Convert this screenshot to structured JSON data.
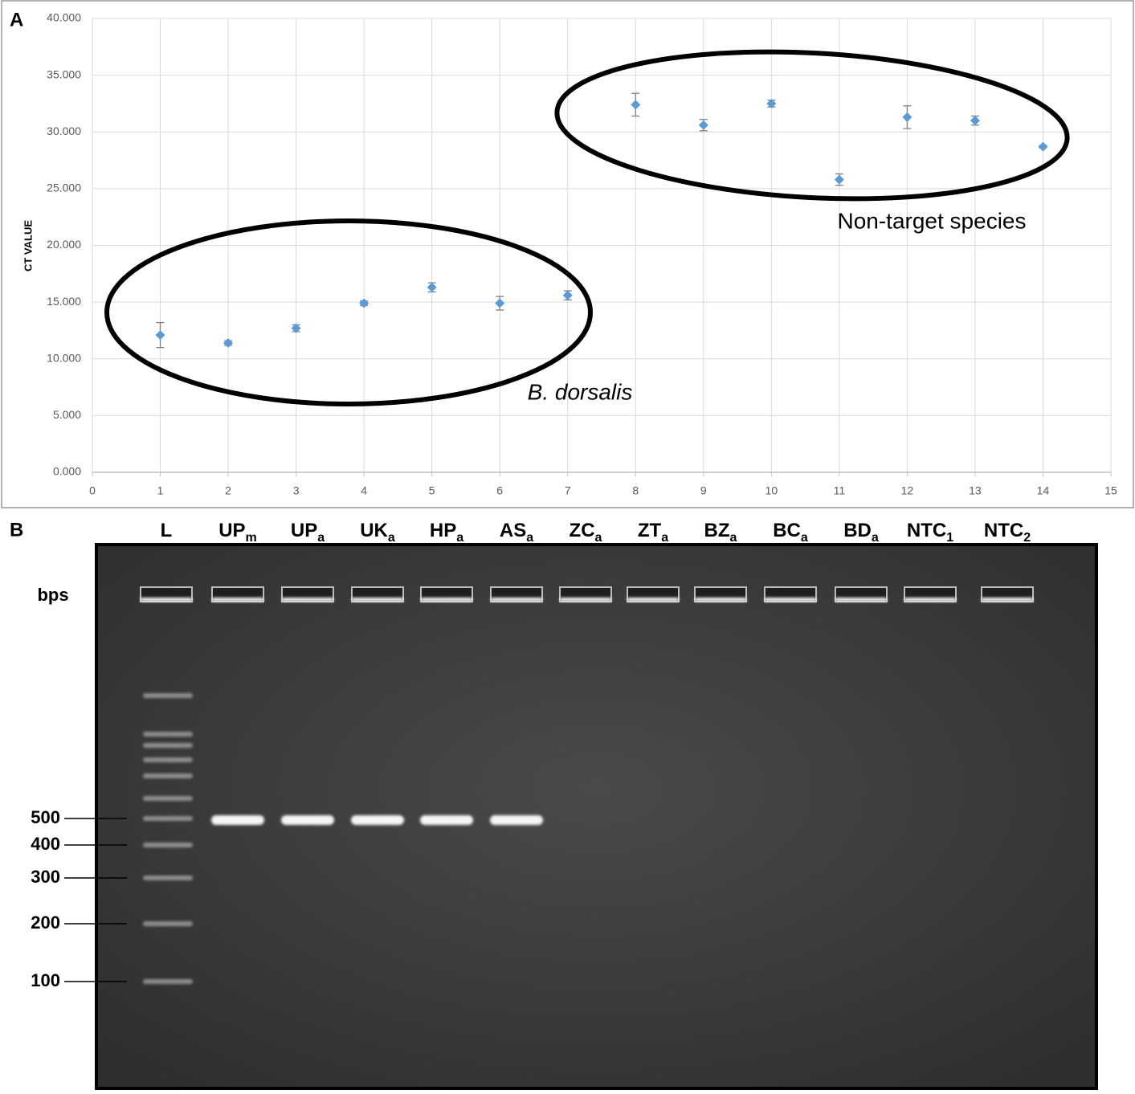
{
  "chart_data": {
    "type": "scatter",
    "panel_label": "A",
    "ylabel": "CT VALUE",
    "x": [
      1,
      2,
      3,
      4,
      5,
      6,
      7,
      8,
      9,
      10,
      11,
      12,
      13,
      14
    ],
    "values": [
      12.1,
      11.4,
      12.7,
      14.9,
      16.3,
      14.9,
      15.6,
      32.4,
      30.6,
      32.5,
      25.8,
      31.3,
      31.0,
      28.7
    ],
    "errors": [
      1.1,
      0.2,
      0.3,
      0.2,
      0.4,
      0.6,
      0.4,
      1.0,
      0.5,
      0.3,
      0.5,
      1.0,
      0.4,
      0.1
    ],
    "color": "#5b9bd5",
    "xlim": [
      0,
      15
    ],
    "xticks": [
      0,
      1,
      2,
      3,
      4,
      5,
      6,
      7,
      8,
      9,
      10,
      11,
      12,
      13,
      14,
      15
    ],
    "ylim": [
      0,
      40
    ],
    "yticks": [
      {
        "value": 0,
        "label": "0.000"
      },
      {
        "value": 5,
        "label": "5.000"
      },
      {
        "value": 10,
        "label": "10.000"
      },
      {
        "value": 15,
        "label": "15.000"
      },
      {
        "value": 20,
        "label": "20.000"
      },
      {
        "value": 25,
        "label": "25.000"
      },
      {
        "value": 30,
        "label": "30.000"
      },
      {
        "value": 35,
        "label": "35.000"
      },
      {
        "value": 40,
        "label": "40.000"
      }
    ],
    "grid": true,
    "annotations": [
      "Non-target species",
      "B. dorsalis"
    ]
  },
  "panel_b": {
    "panel_label": "B",
    "unit": "bps",
    "lanes": [
      {
        "text": "L"
      },
      {
        "text": "UP",
        "sub": "m"
      },
      {
        "text": "UP",
        "sub": "a"
      },
      {
        "text": "UK",
        "sub": "a"
      },
      {
        "text": "HP",
        "sub": "a"
      },
      {
        "text": "AS",
        "sub": "a"
      },
      {
        "text": "ZC",
        "sub": "a"
      },
      {
        "text": "ZT",
        "sub": "a"
      },
      {
        "text": "BZ",
        "sub": "a"
      },
      {
        "text": "BC",
        "sub": "a"
      },
      {
        "text": "BD",
        "sub": "a"
      },
      {
        "text": "NTC",
        "sub": "1"
      },
      {
        "text": "NTC",
        "sub": "2"
      }
    ],
    "markers": [
      "500",
      "400",
      "300",
      "200",
      "100"
    ]
  }
}
